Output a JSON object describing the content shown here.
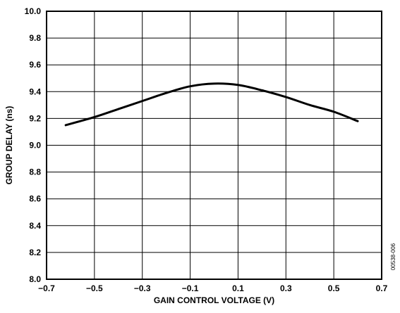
{
  "chart_data": {
    "type": "line",
    "xlabel": "GAIN CONTROL VOLTAGE (V)",
    "ylabel": "GROUP DELAY (ns)",
    "xlim": [
      -0.7,
      0.7
    ],
    "ylim": [
      8.0,
      10.0
    ],
    "x_ticks": [
      -0.7,
      -0.5,
      -0.3,
      -0.1,
      0.1,
      0.3,
      0.5,
      0.7
    ],
    "y_ticks": [
      8.0,
      8.2,
      8.4,
      8.6,
      8.8,
      9.0,
      9.2,
      9.4,
      9.6,
      9.8,
      10.0
    ],
    "x_tick_labels": [
      "−0.7",
      "−0.5",
      "−0.3",
      "−0.1",
      "0.1",
      "0.3",
      "0.5",
      "0.7"
    ],
    "y_tick_labels": [
      "8.0",
      "8.2",
      "8.4",
      "8.6",
      "8.8",
      "9.0",
      "9.2",
      "9.4",
      "9.6",
      "9.8",
      "10.0"
    ],
    "grid": true,
    "series": [
      {
        "x": [
          -0.62,
          -0.5,
          -0.4,
          -0.3,
          -0.2,
          -0.1,
          0.0,
          0.1,
          0.2,
          0.3,
          0.4,
          0.5,
          0.6
        ],
        "y": [
          9.15,
          9.21,
          9.27,
          9.33,
          9.39,
          9.44,
          9.46,
          9.45,
          9.41,
          9.36,
          9.3,
          9.25,
          9.18
        ]
      }
    ],
    "figure_id": "00538-006"
  }
}
